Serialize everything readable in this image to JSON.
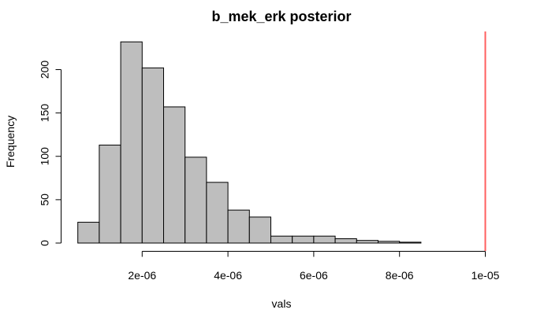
{
  "chart_data": {
    "type": "histogram",
    "title": "b_mek_erk posterior",
    "xlabel": "vals",
    "ylabel": "Frequency",
    "bin_width": 5e-07,
    "bin_edges": [
      5e-07,
      1e-06,
      1.5e-06,
      2e-06,
      2.5e-06,
      3e-06,
      3.5e-06,
      4e-06,
      4.5e-06,
      5e-06,
      5.5e-06,
      6e-06,
      6.5e-06,
      7e-06,
      7.5e-06,
      8e-06,
      8.5e-06
    ],
    "counts": [
      24,
      113,
      232,
      202,
      157,
      99,
      70,
      38,
      30,
      8,
      8,
      8,
      5,
      3,
      2,
      1
    ],
    "xlim": [
      0,
      1e-05
    ],
    "ylim": [
      0,
      240
    ],
    "x_ticks": [
      2e-06,
      4e-06,
      6e-06,
      8e-06,
      1e-05
    ],
    "x_tick_labels": [
      "2e-06",
      "4e-06",
      "6e-06",
      "8e-06",
      "1e-05"
    ],
    "y_ticks": [
      0,
      50,
      100,
      150,
      200
    ],
    "y_tick_labels": [
      "0",
      "50",
      "100",
      "150",
      "200"
    ],
    "reference_line": {
      "x": 1e-05,
      "color": "#ff5f5f"
    },
    "bar_color": "#bebebe",
    "grid": false,
    "legend": "none"
  }
}
